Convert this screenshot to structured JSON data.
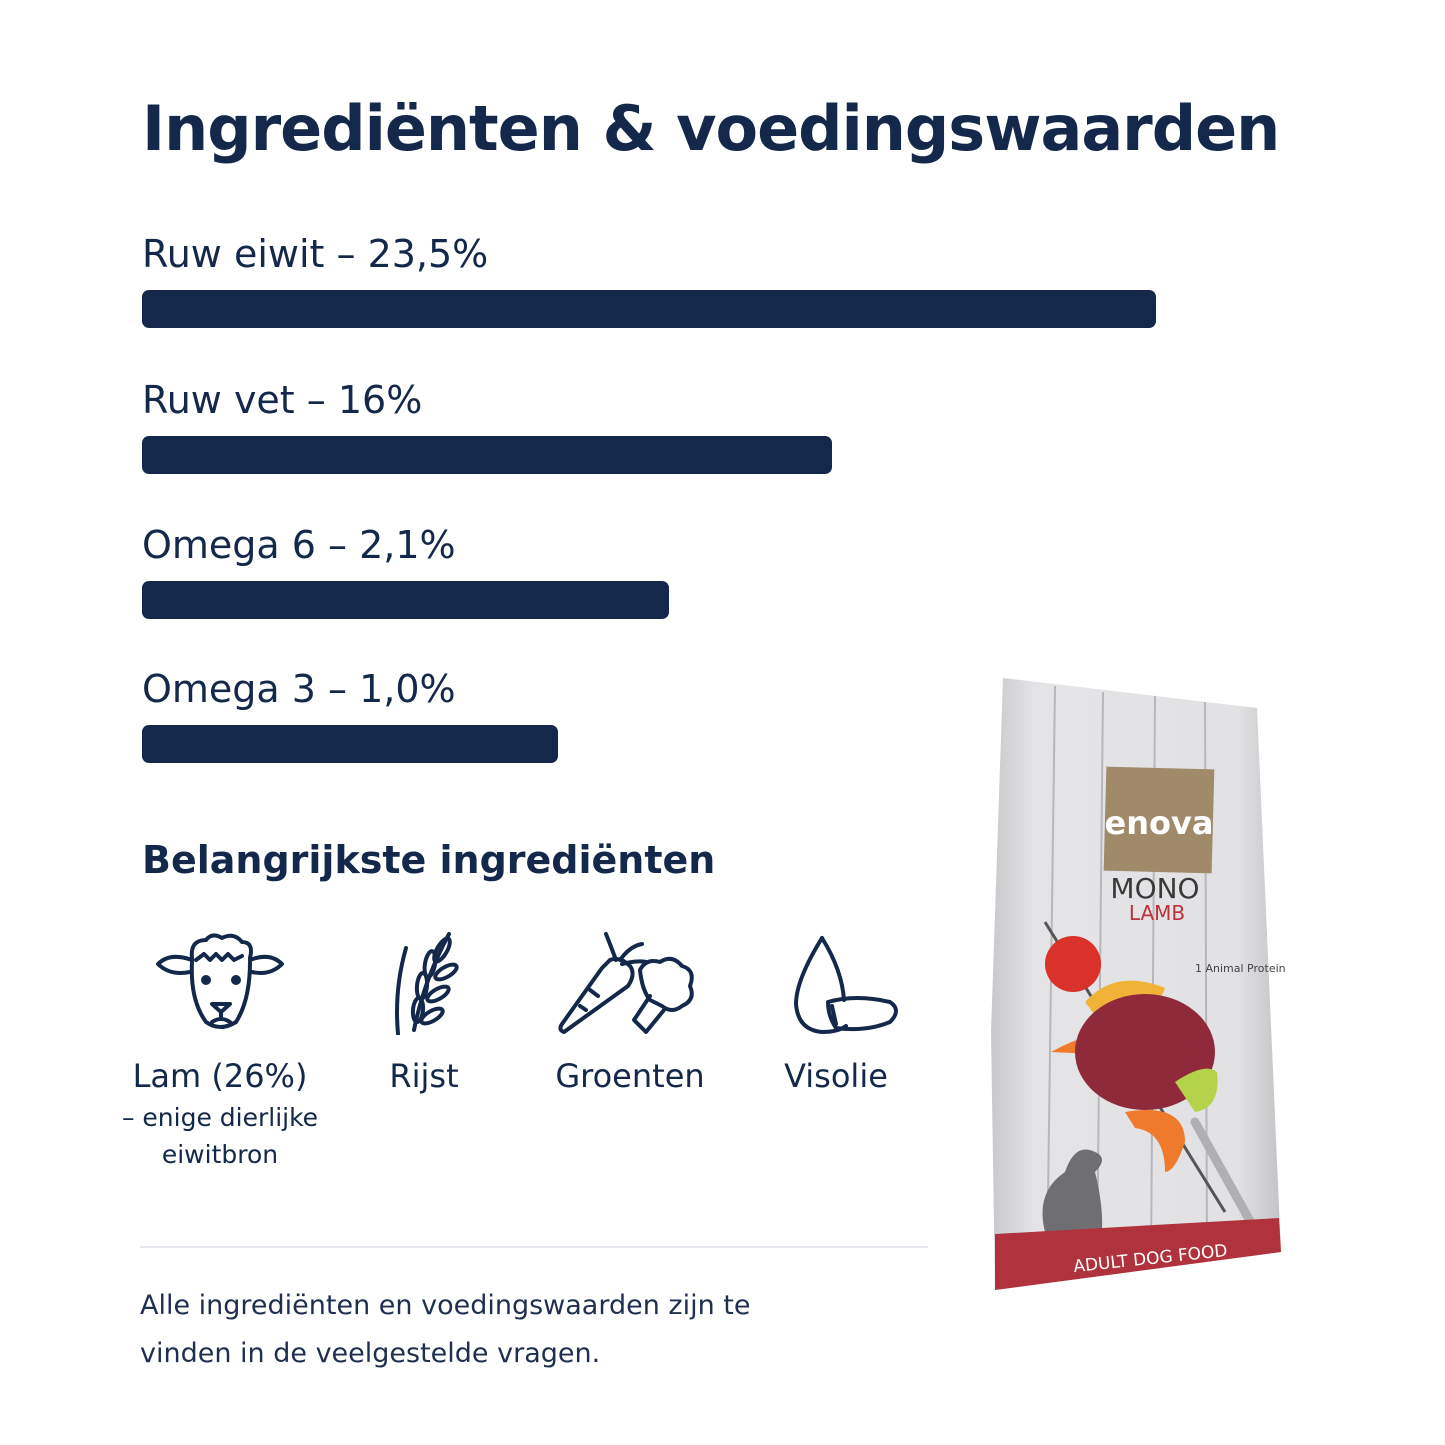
{
  "title": "Ingrediënten & voedingswaarden",
  "colors": {
    "primary": "#13284a",
    "bag_red": "#b0323c",
    "bag_brown": "#a08a6a"
  },
  "nutrients": [
    {
      "label": "Ruw eiwit – 23,5%",
      "bar_fill": 1.0
    },
    {
      "label": "Ruw vet – 16%",
      "bar_fill": 0.68
    },
    {
      "label": "Omega 6 – 2,1%",
      "bar_fill": 0.52
    },
    {
      "label": "Omega 3 – 1,0%",
      "bar_fill": 0.41
    }
  ],
  "ingredients_title": "Belangrijkste ingrediënten",
  "ingredients": [
    {
      "icon": "sheep-icon",
      "label": "Lam (26%)",
      "note": "– enige dierlijke eiwitbron"
    },
    {
      "icon": "grain-icon",
      "label": "Rijst"
    },
    {
      "icon": "vegetables-icon",
      "label": "Groenten"
    },
    {
      "icon": "fish-oil-icon",
      "label": "Visolie"
    }
  ],
  "footer": "Alle ingrediënten en voedingswaarden zijn te vinden in de veelgestelde vragen.",
  "product": {
    "brand": "enova",
    "line": "MONO",
    "variant": "LAMB",
    "badge": "1 Animal Protein",
    "type": "ADULT DOG FOOD"
  }
}
